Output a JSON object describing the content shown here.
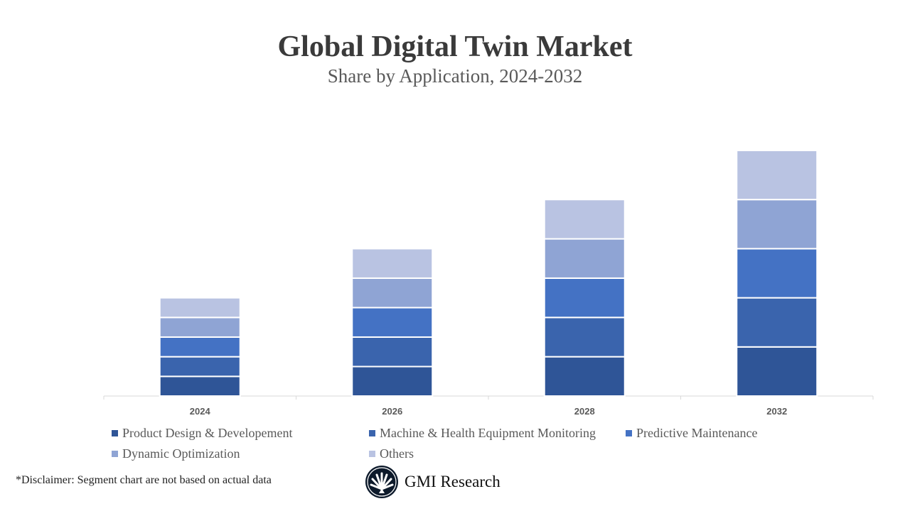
{
  "chart_data": {
    "type": "bar",
    "stacked": true,
    "title": "Global Digital Twin Market",
    "subtitle": "Share by Application, 2024-2032",
    "categories": [
      "2024",
      "2026",
      "2028",
      "2032"
    ],
    "series": [
      {
        "name": "Product Design & Developement",
        "color": "#2F5597",
        "values": [
          2,
          3,
          4,
          5
        ]
      },
      {
        "name": "Machine & Health Equipment Monitoring",
        "color": "#3A64AD",
        "values": [
          2,
          3,
          4,
          5
        ]
      },
      {
        "name": "Predictive Maintenance",
        "color": "#4472C4",
        "values": [
          2,
          3,
          4,
          5
        ]
      },
      {
        "name": "Dynamic Optimization",
        "color": "#8FA4D4",
        "values": [
          2,
          3,
          4,
          5
        ]
      },
      {
        "name": "Others",
        "color": "#B9C3E2",
        "values": [
          2,
          3,
          4,
          5
        ]
      }
    ],
    "ylim": [
      0,
      25
    ],
    "y_axis_visible": false,
    "grid": false,
    "legend_position": "bottom"
  },
  "footer": {
    "disclaimer": "*Disclaimer:  Segment chart are not based on actual data",
    "logo_text": "GMI Research"
  }
}
